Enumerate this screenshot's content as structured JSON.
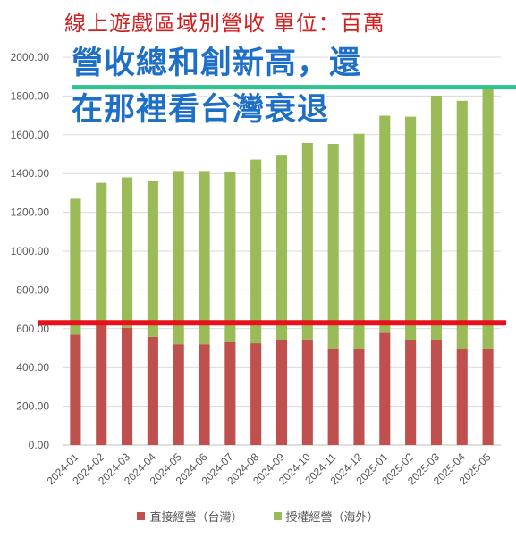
{
  "title": "線上遊戲區域別營收  單位：百萬",
  "headline": {
    "line1": "營收總和創新高，還",
    "line2": "在那裡看台灣衰退"
  },
  "colors": {
    "domestic": "#c0504d",
    "overseas": "#9bbb59",
    "title": "#d02020",
    "headline": "#1e6fc8",
    "red_line": "#e8101a",
    "green_line": "#2ec48f"
  },
  "reference_lines": {
    "red_value": 630,
    "green_value": 1845
  },
  "chart_data": {
    "type": "bar",
    "stacked": true,
    "title": "線上遊戲區域別營收  單位：百萬",
    "categories": [
      "2024-01",
      "2024-02",
      "2024-03",
      "2024-04",
      "2024-05",
      "2024-06",
      "2024-07",
      "2024-08",
      "2024-09",
      "2024-10",
      "2024-11",
      "2024-12",
      "2025-01",
      "2025-02",
      "2025-03",
      "2025-04",
      "2025-05"
    ],
    "series": [
      {
        "name": "直接經營（台灣）",
        "values": [
          570,
          620,
          605,
          558,
          520,
          520,
          530,
          525,
          540,
          545,
          495,
          495,
          578,
          540,
          540,
          495,
          495
        ]
      },
      {
        "name": "授權經營（海外）",
        "values": [
          700,
          732,
          775,
          805,
          893,
          893,
          877,
          947,
          957,
          1013,
          1058,
          1110,
          1120,
          1153,
          1262,
          1280,
          1355
        ]
      }
    ],
    "yticks": [
      "0.00",
      "200.00",
      "400.00",
      "600.00",
      "800.00",
      "1000.00",
      "1200.00",
      "1400.00",
      "1600.00",
      "1800.00",
      "2000.00"
    ],
    "ylim": [
      0,
      2000
    ],
    "grid": true,
    "legend": "bottom"
  }
}
